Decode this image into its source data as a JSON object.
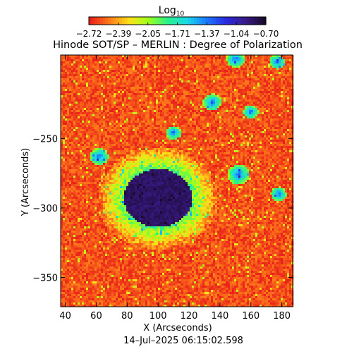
{
  "chart_data": {
    "type": "heatmap",
    "title": "Hinode SOT/SP – MERLIN : Degree of Polarization",
    "colorbar": {
      "label": "Log",
      "label_sub": "10",
      "ticks": [
        "−2.72",
        "−2.39",
        "−2.05",
        "−1.71",
        "−1.37",
        "−1.04",
        "−0.70"
      ],
      "range": [
        -2.72,
        -0.7
      ],
      "colormap": [
        "#e8201a",
        "#ff7a1a",
        "#ffe01a",
        "#a0ff1a",
        "#2af08a",
        "#1ad8e8",
        "#1a7aff",
        "#2a2ae0",
        "#3a1a8a",
        "#1a0a2a"
      ]
    },
    "xlabel": "X (Arcseconds)",
    "ylabel": "Y (Arcseconds)",
    "xlim": [
      37,
      187
    ],
    "ylim": [
      -371,
      -190
    ],
    "xticks": [
      40,
      60,
      80,
      100,
      120,
      140,
      160,
      180
    ],
    "yticks": [
      -250,
      -300,
      -350
    ],
    "ytick_labels": [
      "−250",
      "−300",
      "−350"
    ],
    "features": {
      "umbra_center": [
        100,
        -293
      ],
      "umbra_radius": 22,
      "penumbra_radius": 40,
      "background_level": -2.6
    },
    "timestamp": "14–Jul–2025 06:15:02.598"
  }
}
